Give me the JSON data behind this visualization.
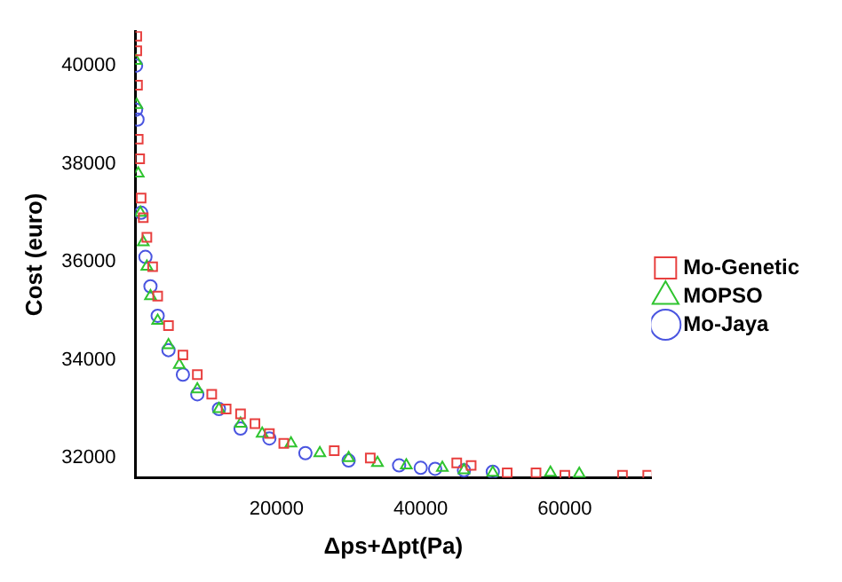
{
  "chart_data": {
    "type": "scatter",
    "xlabel": "Δps+Δpt(Pa)",
    "ylabel": "Cost (euro)",
    "xlim": [
      400,
      72000
    ],
    "xticks": [
      20000,
      40000,
      60000
    ],
    "ylim": [
      31600,
      40700
    ],
    "yticks": [
      32000,
      34000,
      36000,
      38000,
      40000
    ],
    "grid": false,
    "legend": "right",
    "series": [
      {
        "name": "Mo-Genetic",
        "color": "#e8403f",
        "marker": "square",
        "x": [
          600,
          600,
          700,
          800,
          1000,
          1200,
          1500,
          2000,
          2800,
          3500,
          5000,
          7000,
          9000,
          11000,
          13000,
          15000,
          17000,
          19000,
          21000,
          28000,
          33000,
          45000,
          47000,
          52000,
          56000,
          60000,
          68000,
          71500
        ],
        "values": [
          40600,
          40300,
          39600,
          38500,
          38100,
          37300,
          36900,
          36500,
          35900,
          35300,
          34700,
          34100,
          33700,
          33300,
          33000,
          32900,
          32700,
          32500,
          32300,
          32150,
          32000,
          31900,
          31850,
          31700,
          31700,
          31650,
          31650,
          31650
        ]
      },
      {
        "name": "MOPSO",
        "color": "#2fc42f",
        "marker": "triangle",
        "x": [
          500,
          600,
          800,
          1100,
          1500,
          2000,
          2500,
          3500,
          5000,
          6500,
          9000,
          12000,
          15000,
          18000,
          22000,
          26000,
          30000,
          34000,
          38000,
          43000,
          46000,
          50000,
          58000,
          62000
        ],
        "values": [
          40100,
          39200,
          37800,
          37000,
          36400,
          35900,
          35300,
          34800,
          34300,
          33900,
          33400,
          33000,
          32700,
          32500,
          32300,
          32100,
          32000,
          31900,
          31850,
          31800,
          31750,
          31700,
          31700,
          31680
        ]
      },
      {
        "name": "Mo-Jaya",
        "color": "#4a55e0",
        "marker": "circle",
        "x": [
          500,
          500,
          700,
          1200,
          1800,
          2500,
          3500,
          5000,
          7000,
          9000,
          12000,
          15000,
          19000,
          24000,
          30000,
          37000,
          40000,
          42000,
          46000,
          50000
        ],
        "values": [
          40000,
          39100,
          38900,
          37000,
          36100,
          35500,
          34900,
          34200,
          33700,
          33300,
          33000,
          32600,
          32400,
          32100,
          31950,
          31850,
          31800,
          31780,
          31750,
          31720
        ]
      }
    ]
  }
}
